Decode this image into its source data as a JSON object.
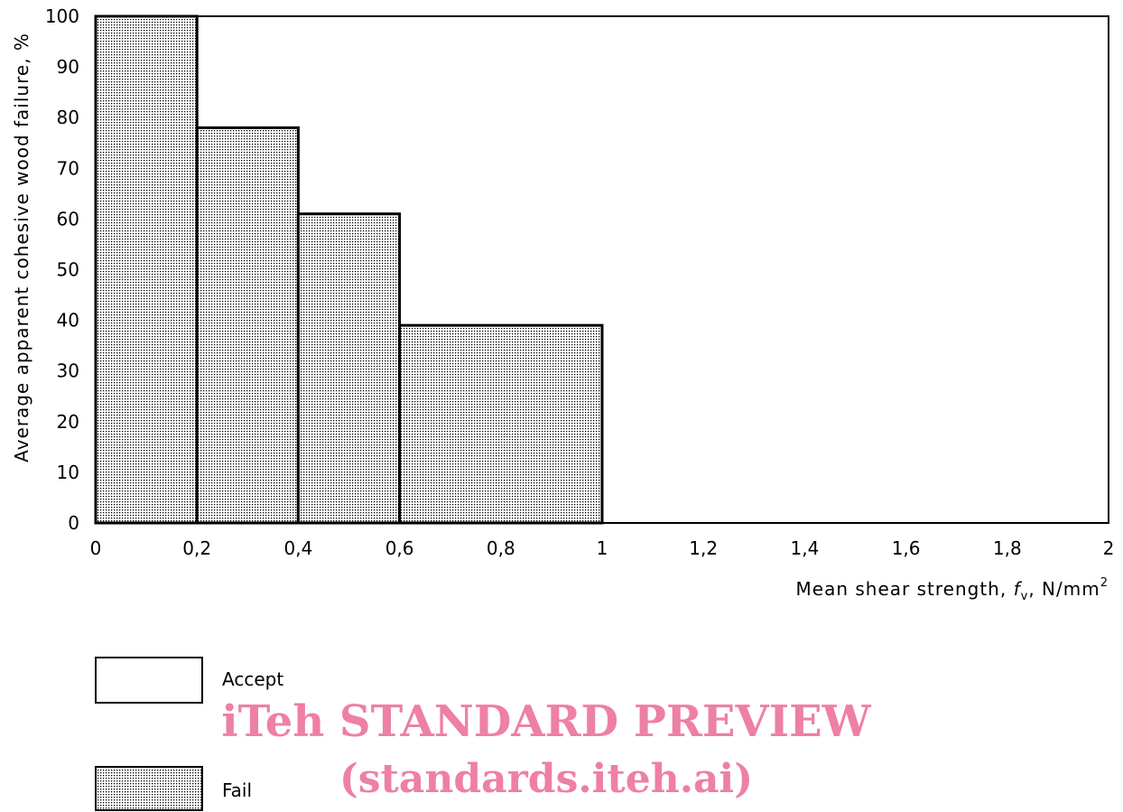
{
  "chart_data": {
    "type": "bar",
    "subtype": "step-histogram",
    "bins": [
      {
        "x_start": 0,
        "x_end": 0.2,
        "value": 100
      },
      {
        "x_start": 0.2,
        "x_end": 0.4,
        "value": 78
      },
      {
        "x_start": 0.4,
        "x_end": 0.6,
        "value": 61
      },
      {
        "x_start": 0.6,
        "x_end": 1.0,
        "value": 39
      }
    ],
    "xlim": [
      0,
      2
    ],
    "ylim": [
      0,
      100
    ],
    "x_ticks": [
      0,
      0.2,
      0.4,
      0.6,
      0.8,
      1,
      1.2,
      1.4,
      1.6,
      1.8,
      2
    ],
    "x_tick_labels": [
      "0",
      "0,2",
      "0,4",
      "0,6",
      "0,8",
      "1",
      "1,2",
      "1,4",
      "1,6",
      "1,8",
      "2"
    ],
    "y_ticks": [
      0,
      10,
      20,
      30,
      40,
      50,
      60,
      70,
      80,
      90,
      100
    ],
    "y_tick_labels": [
      "0",
      "10",
      "20",
      "30",
      "40",
      "50",
      "60",
      "70",
      "80",
      "90",
      "100"
    ],
    "ylabel": "Average apparent cohesive wood failure, %",
    "xlabel": {
      "prefix": "Mean shear strength, ",
      "symbol": "f",
      "subscript": "v",
      "middle": ", N/mm",
      "superscript": "2"
    },
    "grid": false,
    "legend": {
      "placement": "bottom-left",
      "entries": [
        {
          "label": "Accept",
          "fill": "none"
        },
        {
          "label": "Fail",
          "fill": "dotted"
        }
      ]
    },
    "colors": {
      "line": "#000000",
      "fail_fill": "#ffffff",
      "dots": "#000000"
    }
  },
  "watermark": {
    "line1": "iTeh STANDARD PREVIEW",
    "line2": "(standards.iteh.ai)",
    "color": "#ee7fa6"
  }
}
